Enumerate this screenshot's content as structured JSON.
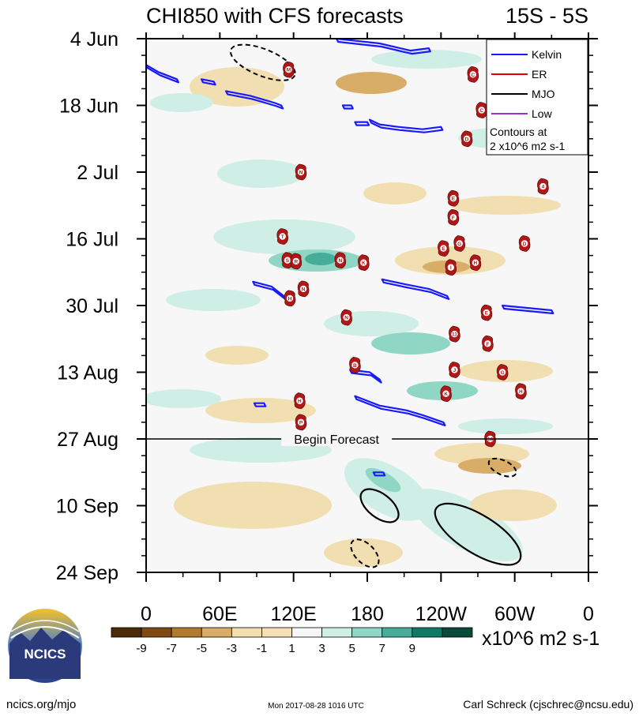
{
  "header": {
    "title": "CHI850 with CFS forecasts",
    "region": "15S - 5S"
  },
  "chart_data": {
    "type": "heatmap",
    "title": "CHI850 with CFS forecasts",
    "subtitle": "15S - 5S",
    "x_tick_labels": [
      "0",
      "60E",
      "120E",
      "180",
      "120W",
      "60W",
      "0"
    ],
    "x_ticks_deg": [
      0,
      60,
      120,
      180,
      240,
      300,
      360
    ],
    "x_range_deg": [
      0,
      360
    ],
    "y_tick_labels": [
      "4 Jun",
      "18 Jun",
      "2 Jul",
      "16 Jul",
      "30 Jul",
      "13 Aug",
      "27 Aug",
      "10 Sep",
      "24 Sep"
    ],
    "y_ticks_day": [
      0,
      14,
      28,
      42,
      56,
      70,
      84,
      98,
      112
    ],
    "y_range_day": [
      0,
      112
    ],
    "forecast_start_day": 84,
    "forecast_label": "Begin Forecast",
    "legend": {
      "position": "top-right",
      "entries": [
        {
          "label": "Kelvin",
          "color": "#1a1aff"
        },
        {
          "label": "ER",
          "color": "#e00000"
        },
        {
          "label": "MJO",
          "color": "#000000"
        },
        {
          "label": "Low",
          "color": "#9a2fd0"
        }
      ],
      "note_line1": "Contours at",
      "note_line2": "2 x10^6 m2 s-1"
    },
    "colorbar": {
      "tick_labels": [
        "-9",
        "-7",
        "-5",
        "-3",
        "-1",
        "1",
        "3",
        "5",
        "7",
        "9"
      ],
      "colors": [
        "#4a2a08",
        "#7e4a12",
        "#b27a2c",
        "#d8ad68",
        "#f1deb1",
        "#f6dfb6",
        "#f7f7f7",
        "#cfeee6",
        "#8fd6c4",
        "#46ad99",
        "#117a66",
        "#0a4a3a"
      ],
      "units": "x10^6 m2 s-1"
    },
    "kelvin_contours": [
      {
        "lon": [
          155,
          190,
          215,
          230
        ],
        "day": [
          0,
          1,
          2.5,
          2
        ]
      },
      {
        "lon": [
          0,
          10,
          25
        ],
        "day": [
          5.5,
          7,
          8.5
        ]
      },
      {
        "lon": [
          45,
          55
        ],
        "day": [
          8.5,
          9
        ]
      },
      {
        "lon": [
          65,
          85,
          105,
          110
        ],
        "day": [
          11,
          12,
          13.5,
          14
        ]
      },
      {
        "lon": [
          160,
          167
        ],
        "day": [
          14,
          14
        ]
      },
      {
        "lon": [
          170,
          180
        ],
        "day": [
          17.5,
          17.5
        ]
      },
      {
        "lon": [
          182,
          190,
          205,
          225,
          240
        ],
        "day": [
          17,
          18,
          18.5,
          19,
          18.5
        ]
      },
      {
        "lon": [
          87,
          102,
          112
        ],
        "day": [
          51,
          52,
          54
        ]
      },
      {
        "lon": [
          192,
          210,
          230,
          245
        ],
        "day": [
          50.5,
          51.5,
          52.5,
          54
        ]
      },
      {
        "lon": [
          290,
          310,
          330
        ],
        "day": [
          56,
          56.5,
          57
        ]
      },
      {
        "lon": [
          166,
          182,
          190
        ],
        "day": [
          69.5,
          70,
          71.5
        ]
      },
      {
        "lon": [
          170,
          190,
          212,
          225,
          242
        ],
        "day": [
          75,
          77,
          78,
          79,
          80.5
        ]
      },
      {
        "lon": [
          88,
          96
        ],
        "day": [
          76.5,
          76.5
        ]
      },
      {
        "lon": [
          185,
          193
        ],
        "day": [
          91,
          91
        ]
      }
    ],
    "mjo_contours_solid": [
      {
        "center_lon": [
          190,
          98
        ],
        "radius": [
          18,
          2.5
        ],
        "angle": 38
      },
      {
        "center_lon": [
          270,
          104
        ],
        "radius": [
          40,
          4
        ],
        "angle": 32
      }
    ],
    "mjo_contours_dashed": [
      {
        "center_lon": [
          95,
          5
        ],
        "radius": [
          28,
          2.8
        ],
        "angle": 22
      },
      {
        "center_lon": [
          290,
          90
        ],
        "radius": [
          12,
          1.5
        ],
        "angle": 25
      },
      {
        "center_lon": [
          178,
          108
        ],
        "radius": [
          14,
          2
        ],
        "angle": 45
      }
    ],
    "storm_markers": [
      {
        "label": "M",
        "lon": 116,
        "day": 6.5
      },
      {
        "label": "C",
        "lon": 266,
        "day": 7.5
      },
      {
        "label": "C",
        "lon": 273,
        "day": 15
      },
      {
        "label": "D",
        "lon": 261,
        "day": 21
      },
      {
        "label": "N",
        "lon": 126,
        "day": 28
      },
      {
        "label": "4",
        "lon": 323,
        "day": 31
      },
      {
        "label": "E",
        "lon": 250,
        "day": 33.5
      },
      {
        "label": "F",
        "lon": 250,
        "day": 37.5
      },
      {
        "label": "T",
        "lon": 111,
        "day": 41.5
      },
      {
        "label": "G",
        "lon": 255,
        "day": 43
      },
      {
        "label": "D",
        "lon": 308,
        "day": 43
      },
      {
        "label": "E",
        "lon": 242,
        "day": 44
      },
      {
        "label": "S",
        "lon": 115,
        "day": 46.5
      },
      {
        "label": "R",
        "lon": 122,
        "day": 46.7
      },
      {
        "label": "N",
        "lon": 158,
        "day": 46.5
      },
      {
        "label": "K",
        "lon": 177,
        "day": 47
      },
      {
        "label": "H",
        "lon": 268,
        "day": 47
      },
      {
        "label": "I",
        "lon": 248,
        "day": 48
      },
      {
        "label": "N",
        "lon": 128,
        "day": 52.5
      },
      {
        "label": "H",
        "lon": 117,
        "day": 54.5
      },
      {
        "label": "E",
        "lon": 277,
        "day": 57.5
      },
      {
        "label": "N",
        "lon": 163,
        "day": 58.5
      },
      {
        "label": "11",
        "lon": 251,
        "day": 62
      },
      {
        "label": "F",
        "lon": 278,
        "day": 64
      },
      {
        "label": "B",
        "lon": 170,
        "day": 68.5
      },
      {
        "label": "J",
        "lon": 251,
        "day": 69.5
      },
      {
        "label": "G",
        "lon": 290,
        "day": 70
      },
      {
        "label": "K",
        "lon": 244,
        "day": 74.5
      },
      {
        "label": "H",
        "lon": 305,
        "day": 74
      },
      {
        "label": "H",
        "lon": 125,
        "day": 76
      },
      {
        "label": "P",
        "lon": 126,
        "day": 80.5
      },
      {
        "label": "10",
        "lon": 280,
        "day": 84
      }
    ]
  },
  "footer": {
    "logo_text": "NCICS",
    "site": "ncics.org/mjo",
    "timestamp": "Mon 2017-08-28 1016 UTC",
    "credit": "Carl Schreck (cjschrec@ncsu.edu)"
  }
}
